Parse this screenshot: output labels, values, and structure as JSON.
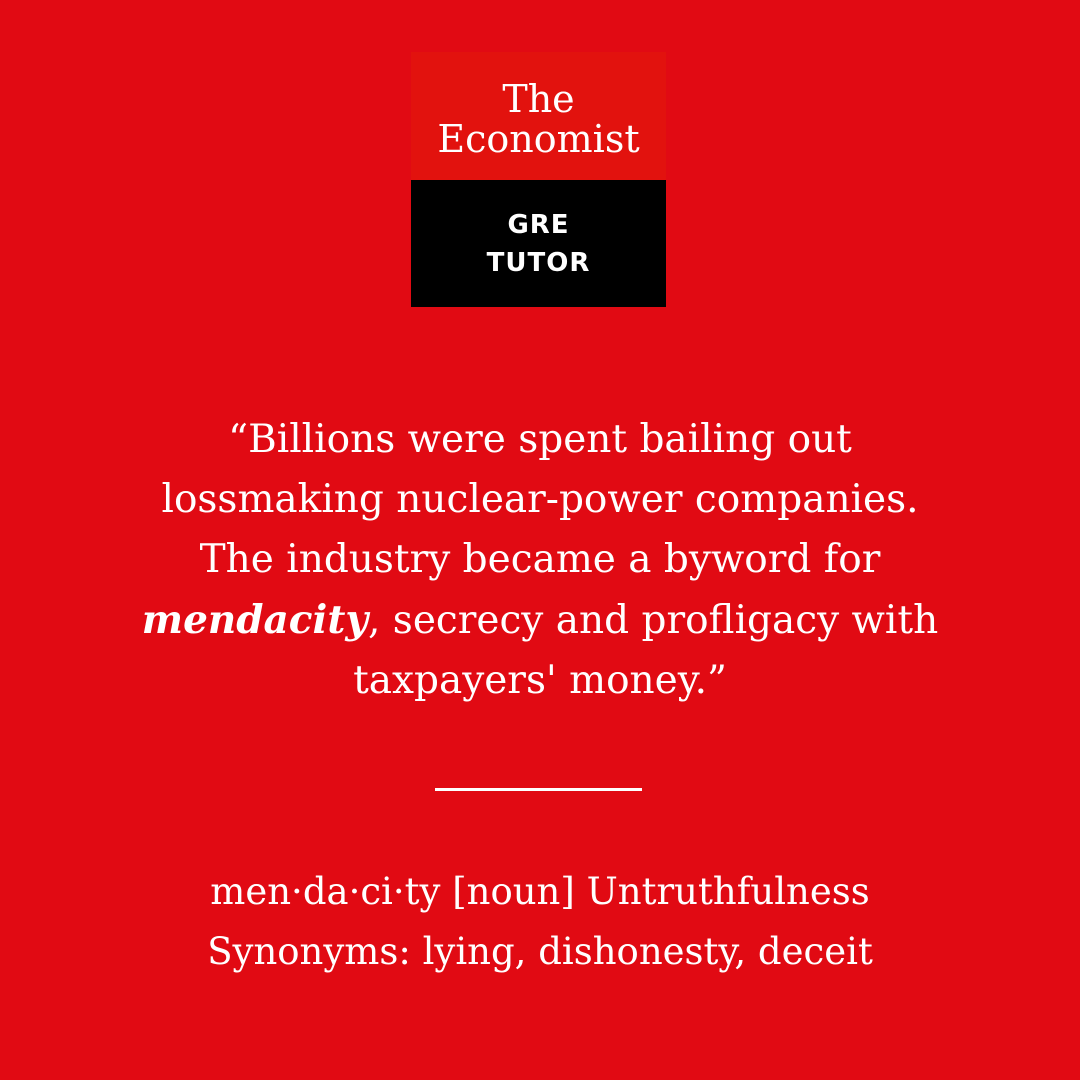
{
  "colors": {
    "background": "#e10a13",
    "logo_top": "#e2120e",
    "logo_bottom": "#000000",
    "text": "#ffffff"
  },
  "logo": {
    "line1": "The",
    "line2": "Economist",
    "badge_line1": "GRE",
    "badge_line2": "TUTOR"
  },
  "quote": {
    "before": "“Billions were spent bailing out lossmaking nuclear-power companies. The industry became a byword for ",
    "highlight": "mendacity",
    "after": ", secrecy and profligacy with taxpayers' money.”"
  },
  "definition": {
    "term": "men·da·ci·ty",
    "pos": "[noun]",
    "meaning": "Untruthfulness",
    "synonyms_label": "Synonyms:",
    "synonyms": "lying, dishonesty, deceit"
  }
}
